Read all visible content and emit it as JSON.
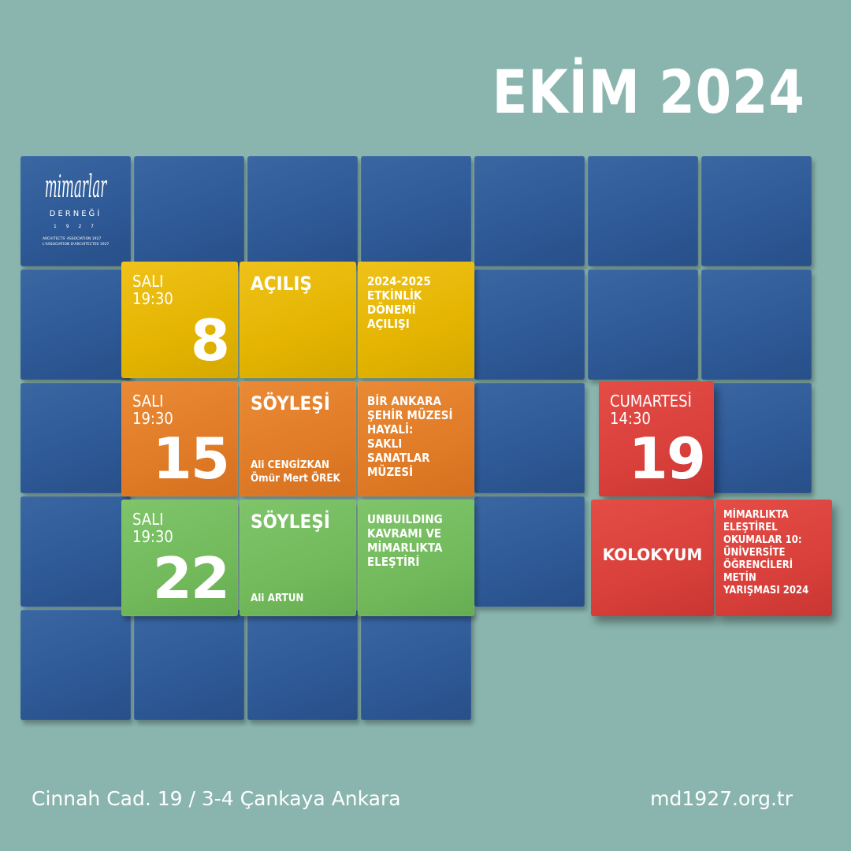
{
  "title": "EKİM 2024",
  "logo": {
    "name": "mimarlar",
    "sub": "DERNEĞİ",
    "year_digits": "1 9 2 7",
    "line1": "ARCHITECTS' ASSOCIATION 1927",
    "line2": "L'ASSOCIATION D'ARCHITECTES 1927"
  },
  "events": [
    {
      "day": "SALI",
      "time": "19:30",
      "date": "8",
      "kind": "AÇILIŞ",
      "description_lines": [
        "2024-2025",
        "ETKİNLİK",
        "DÖNEMİ",
        "AÇILIŞI"
      ],
      "people": []
    },
    {
      "day": "SALI",
      "time": "19:30",
      "date": "15",
      "kind": "SÖYLEŞİ",
      "description_lines": [
        "BİR ANKARA",
        "ŞEHİR MÜZESİ",
        "HAYALİ:",
        "SAKLI",
        "SANATLAR",
        "MÜZESİ"
      ],
      "people": [
        "Ali CENGİZKAN",
        "Ömür Mert ÖREK"
      ]
    },
    {
      "day": "SALI",
      "time": "19:30",
      "date": "22",
      "kind": "SÖYLEŞİ",
      "description_lines": [
        "UNBUILDING",
        "KAVRAMI VE",
        "MİMARLIKTA",
        "ELEŞTİRİ"
      ],
      "people": [
        "Ali ARTUN"
      ]
    },
    {
      "day": "CUMARTESİ",
      "time": "14:30",
      "date": "19",
      "kind": "KOLOKYUM",
      "description_lines": [
        "MİMARLIKTA",
        "ELEŞTİREL",
        "OKUMALAR 10:",
        "ÜNİVERSİTE",
        "ÖĞRENCİLERİ",
        "METİN",
        "YARIŞMASI 2024"
      ],
      "people": []
    }
  ],
  "colors": {
    "background": "#8ab5ae",
    "blue": "#2e5a97",
    "yellow": "#e3b400",
    "orange": "#e07b27",
    "green": "#72ba5c",
    "red": "#d9403b"
  },
  "footer": {
    "address": "Cinnah Cad. 19 / 3-4 Çankaya Ankara",
    "website": "md1927.org.tr"
  }
}
